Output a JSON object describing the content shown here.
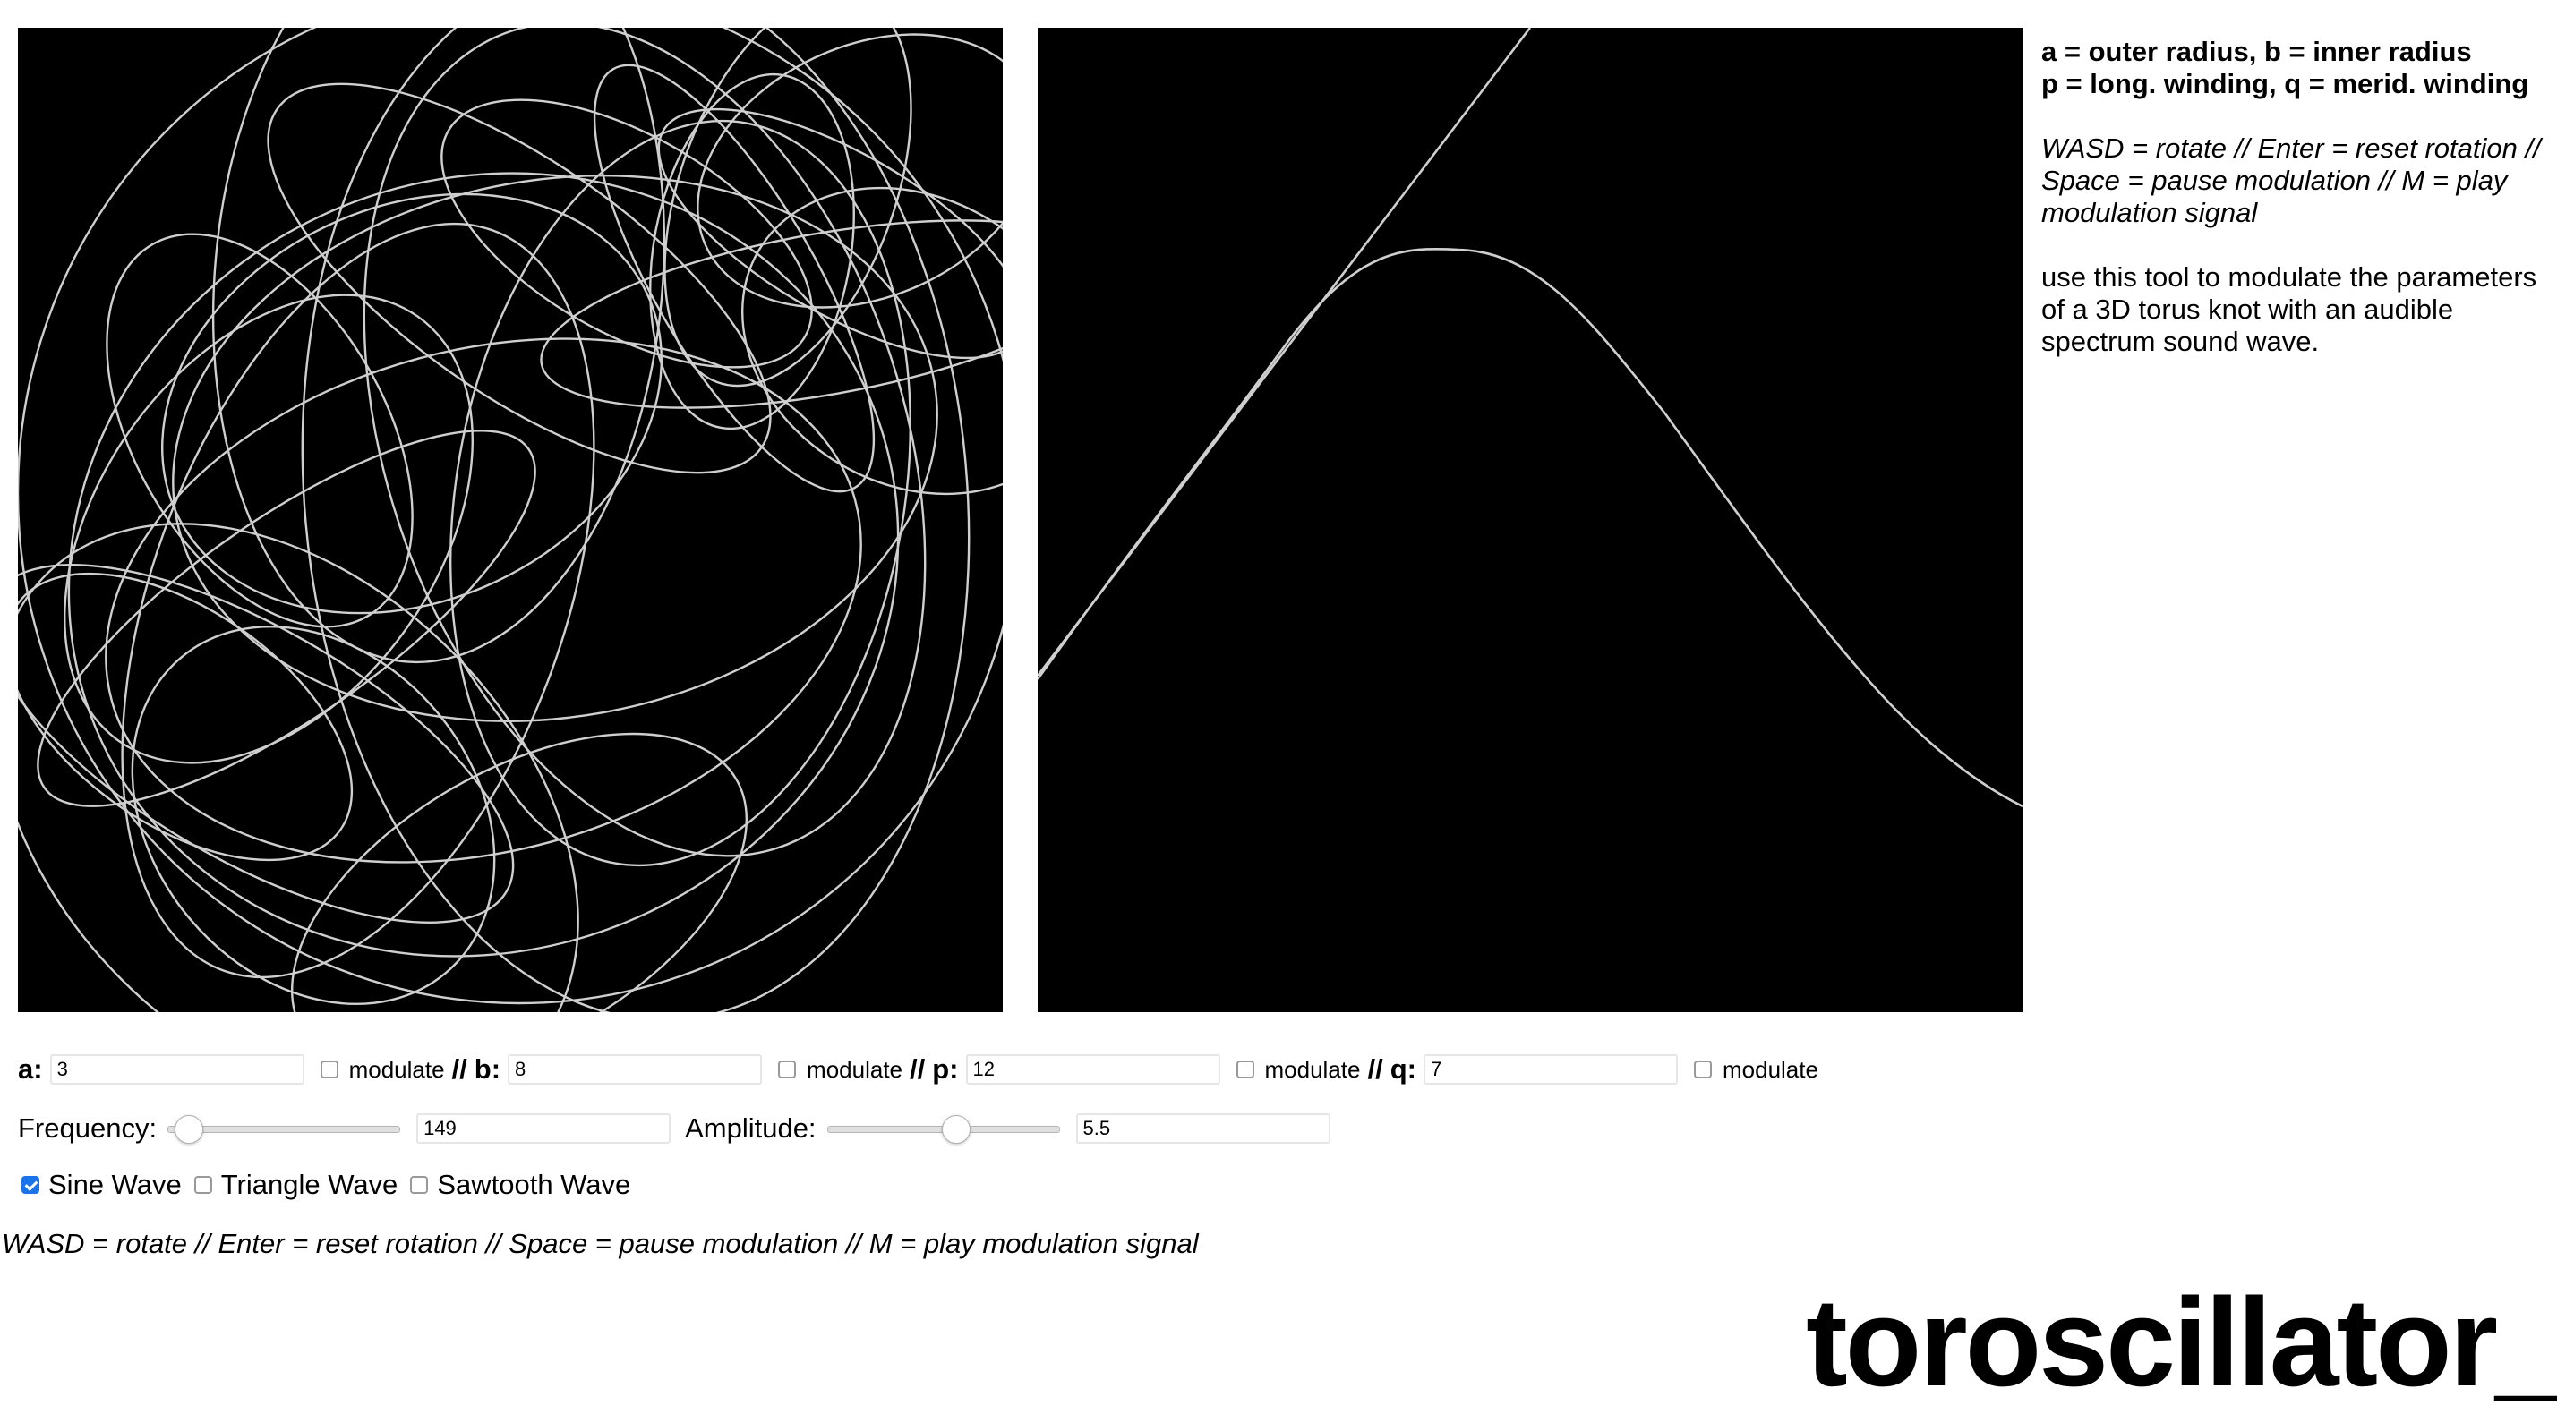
{
  "info": {
    "line1": "a = outer radius, b = inner radius",
    "line2": "p = long. winding, q = merid. winding",
    "controls_hint": "WASD = rotate // Enter = reset rotation // Space = pause modulation // M = play modulation signal",
    "description": "use this tool to modulate the parameters of a 3D torus knot with an audible spectrum sound wave."
  },
  "params": [
    {
      "label": "a:",
      "value": "3",
      "modulate_label": "modulate",
      "modulate_checked": false
    },
    {
      "label": "b:",
      "value": "8",
      "modulate_label": "modulate",
      "modulate_checked": false
    },
    {
      "label": "p:",
      "value": "12",
      "modulate_label": "modulate",
      "modulate_checked": false
    },
    {
      "label": "q:",
      "value": "7",
      "modulate_label": "modulate",
      "modulate_checked": false
    }
  ],
  "separator": "//",
  "frequency": {
    "label": "Frequency:",
    "value": "149",
    "slider_fraction": 0.09
  },
  "amplitude": {
    "label": "Amplitude:",
    "value": "5.5",
    "slider_fraction": 0.55
  },
  "waveforms": [
    {
      "label": "Sine Wave",
      "checked": true
    },
    {
      "label": "Triangle Wave",
      "checked": false
    },
    {
      "label": "Sawtooth Wave",
      "checked": false
    }
  ],
  "footer_hint": "WASD = rotate // Enter = reset rotation // Space = pause modulation // M = play modulation signal",
  "brand": "toroscillator_",
  "colors": {
    "canvas_bg": "#000000",
    "stroke": "#cfcfcf",
    "checkbox_accent": "#1a73e8"
  }
}
